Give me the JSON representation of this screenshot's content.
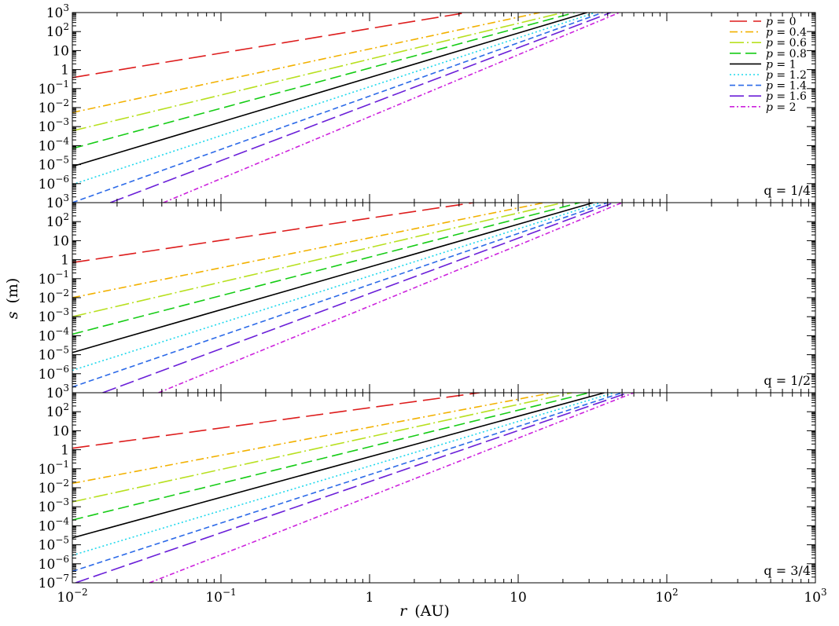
{
  "chart_data": {
    "type": "line",
    "title": "",
    "xlabel_var": "r",
    "xlabel_unit": "(AU)",
    "ylabel_var": "s",
    "ylabel_unit": "(m)",
    "x_scale": "log",
    "y_scale": "log",
    "xlim": [
      0.01,
      1000
    ],
    "ylim": [
      1e-07,
      1000
    ],
    "x_tick_labels": [
      {
        "value": 0.01,
        "base": "10",
        "exp": "−2"
      },
      {
        "value": 0.1,
        "base": "10",
        "exp": "−1"
      },
      {
        "value": 1,
        "base": "1",
        "exp": ""
      },
      {
        "value": 10,
        "base": "10",
        "exp": ""
      },
      {
        "value": 100,
        "base": "10",
        "exp": "2"
      },
      {
        "value": 1000,
        "base": "10",
        "exp": "3"
      }
    ],
    "y_tick_labels": [
      {
        "value": 1000,
        "base": "10",
        "exp": "3"
      },
      {
        "value": 100,
        "base": "10",
        "exp": "2"
      },
      {
        "value": 10,
        "base": "10",
        "exp": ""
      },
      {
        "value": 1,
        "base": "1",
        "exp": ""
      },
      {
        "value": 0.1,
        "base": "10",
        "exp": "−1"
      },
      {
        "value": 0.01,
        "base": "10",
        "exp": "−2"
      },
      {
        "value": 0.001,
        "base": "10",
        "exp": "−3"
      },
      {
        "value": 0.0001,
        "base": "10",
        "exp": "−4"
      },
      {
        "value": 1e-05,
        "base": "10",
        "exp": "−5"
      },
      {
        "value": 1e-06,
        "base": "10",
        "exp": "−6"
      },
      {
        "value": 1e-07,
        "base": "10",
        "exp": "−7"
      }
    ],
    "grid": false,
    "legend_position": "top-right",
    "series_styles": [
      {
        "name": "p = 0",
        "color": "#dd1c1c",
        "dash": "22 8"
      },
      {
        "name": "p = 0.4",
        "color": "#f2b100",
        "dash": "10 4 2 4"
      },
      {
        "name": "p = 0.6",
        "color": "#b8e020",
        "dash": "18 4 2 4"
      },
      {
        "name": "p = 0.8",
        "color": "#16cc16",
        "dash": "14 6"
      },
      {
        "name": "p = 1",
        "color": "#000000",
        "dash": ""
      },
      {
        "name": "p = 1.2",
        "color": "#20d8ec",
        "dash": "2 3"
      },
      {
        "name": "p = 1.4",
        "color": "#2c6ae8",
        "dash": "7 4"
      },
      {
        "name": "p = 1.6",
        "color": "#6a1fd8",
        "dash": "18 6"
      },
      {
        "name": "p = 2",
        "color": "#cc22dd",
        "dash": "6 3 2 3"
      }
    ],
    "panels": [
      {
        "label": "q = 1/4",
        "series": [
          {
            "name": "p = 0",
            "x": [
              0.01,
              4.5
            ],
            "y": [
              0.38,
              1000
            ]
          },
          {
            "name": "p = 0.4",
            "x": [
              0.01,
              14
            ],
            "y": [
              0.0055,
              1000
            ]
          },
          {
            "name": "p = 0.6",
            "x": [
              0.01,
              20
            ],
            "y": [
              0.0006,
              1000
            ]
          },
          {
            "name": "p = 0.8",
            "x": [
              0.01,
              24
            ],
            "y": [
              7e-05,
              1000
            ]
          },
          {
            "name": "p = 1",
            "x": [
              0.01,
              29
            ],
            "y": [
              8e-06,
              1000
            ]
          },
          {
            "name": "p = 1.2",
            "x": [
              0.01,
              33
            ],
            "y": [
              9e-07,
              1000
            ]
          },
          {
            "name": "p = 1.4",
            "x": [
              0.01,
              37
            ],
            "y": [
              1e-07,
              1000
            ]
          },
          {
            "name": "p = 1.6",
            "x": [
              0.018,
              42
            ],
            "y": [
              1e-07,
              1000
            ]
          },
          {
            "name": "p = 2",
            "x": [
              0.041,
              48
            ],
            "y": [
              1e-07,
              1000
            ]
          }
        ]
      },
      {
        "label": "q = 1/2",
        "series": [
          {
            "name": "p = 0",
            "x": [
              0.01,
              5
            ],
            "y": [
              0.7,
              1000
            ]
          },
          {
            "name": "p = 0.4",
            "x": [
              0.01,
              15
            ],
            "y": [
              0.01,
              1000
            ]
          },
          {
            "name": "p = 0.6",
            "x": [
              0.01,
              20
            ],
            "y": [
              0.001,
              1000
            ]
          },
          {
            "name": "p = 0.8",
            "x": [
              0.01,
              26
            ],
            "y": [
              0.00012,
              1000
            ]
          },
          {
            "name": "p = 1",
            "x": [
              0.01,
              32
            ],
            "y": [
              1.3e-05,
              1000
            ]
          },
          {
            "name": "p = 1.2",
            "x": [
              0.01,
              36
            ],
            "y": [
              1.5e-06,
              1000
            ]
          },
          {
            "name": "p = 1.4",
            "x": [
              0.01,
              40
            ],
            "y": [
              2e-07,
              1000
            ]
          },
          {
            "name": "p = 1.6",
            "x": [
              0.016,
              44
            ],
            "y": [
              1e-07,
              1000
            ]
          },
          {
            "name": "p = 2",
            "x": [
              0.038,
              50
            ],
            "y": [
              1e-07,
              1000
            ]
          }
        ]
      },
      {
        "label": "q = 3/4",
        "series": [
          {
            "name": "p = 0",
            "x": [
              0.01,
              5.5
            ],
            "y": [
              1.2,
              1000
            ]
          },
          {
            "name": "p = 0.4",
            "x": [
              0.01,
              17
            ],
            "y": [
              0.017,
              1000
            ]
          },
          {
            "name": "p = 0.6",
            "x": [
              0.01,
              23
            ],
            "y": [
              0.0018,
              1000
            ]
          },
          {
            "name": "p = 0.8",
            "x": [
              0.01,
              30
            ],
            "y": [
              0.0002,
              1000
            ]
          },
          {
            "name": "p = 1",
            "x": [
              0.01,
              38
            ],
            "y": [
              2.3e-05,
              1000
            ]
          },
          {
            "name": "p = 1.2",
            "x": [
              0.01,
              44
            ],
            "y": [
              2.8e-06,
              1000
            ]
          },
          {
            "name": "p = 1.4",
            "x": [
              0.01,
              50
            ],
            "y": [
              4e-07,
              1000
            ]
          },
          {
            "name": "p = 1.6",
            "x": [
              0.0105,
              55
            ],
            "y": [
              1e-07,
              1000
            ]
          },
          {
            "name": "p = 2",
            "x": [
              0.033,
              60
            ],
            "y": [
              1e-07,
              1000
            ]
          }
        ]
      }
    ]
  }
}
